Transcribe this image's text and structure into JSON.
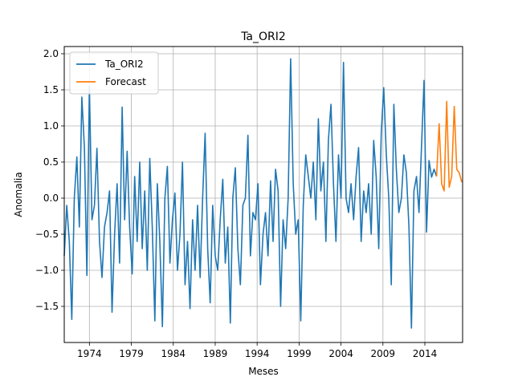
{
  "chart_data": {
    "type": "line",
    "title": "Ta_ORI2",
    "xlabel": "Meses",
    "ylabel": "Anomalia",
    "grid": true,
    "legend_position": "top-left",
    "xlim": [
      1971.0,
      2018.5
    ],
    "ylim": [
      -2.0,
      2.1
    ],
    "x_ticks": [
      1974,
      1979,
      1984,
      1989,
      1994,
      1999,
      2004,
      2009,
      2014
    ],
    "x_tick_labels": [
      "1974",
      "1979",
      "1984",
      "1989",
      "1994",
      "1999",
      "2004",
      "2009",
      "2014"
    ],
    "y_ticks": [
      -1.5,
      -1.0,
      -0.5,
      0.0,
      0.5,
      1.0,
      1.5,
      2.0
    ],
    "y_tick_labels": [
      "−1.5",
      "−1.0",
      "−0.5",
      "0.0",
      "0.5",
      "1.0",
      "1.5",
      "2.0"
    ],
    "series": [
      {
        "name": "Ta_ORI2",
        "color": "#1f77b4",
        "x": [
          1971.0,
          1971.3,
          1971.6,
          1971.9,
          1972.2,
          1972.5,
          1972.8,
          1973.1,
          1973.4,
          1973.7,
          1974.0,
          1974.3,
          1974.6,
          1974.9,
          1975.2,
          1975.5,
          1975.8,
          1976.1,
          1976.4,
          1976.7,
          1977.0,
          1977.3,
          1977.6,
          1977.9,
          1978.2,
          1978.5,
          1978.8,
          1979.1,
          1979.4,
          1979.7,
          1980.0,
          1980.3,
          1980.6,
          1980.9,
          1981.2,
          1981.5,
          1981.8,
          1982.1,
          1982.4,
          1982.7,
          1983.0,
          1983.3,
          1983.6,
          1983.9,
          1984.2,
          1984.5,
          1984.8,
          1985.1,
          1985.4,
          1985.7,
          1986.0,
          1986.3,
          1986.6,
          1986.9,
          1987.2,
          1987.5,
          1987.8,
          1988.1,
          1988.4,
          1988.7,
          1989.0,
          1989.3,
          1989.6,
          1989.9,
          1990.2,
          1990.5,
          1990.8,
          1991.1,
          1991.4,
          1991.7,
          1992.0,
          1992.3,
          1992.6,
          1992.9,
          1993.2,
          1993.5,
          1993.8,
          1994.1,
          1994.4,
          1994.7,
          1995.0,
          1995.3,
          1995.6,
          1995.9,
          1996.2,
          1996.5,
          1996.8,
          1997.1,
          1997.4,
          1997.7,
          1998.0,
          1998.3,
          1998.6,
          1998.9,
          1999.2,
          1999.5,
          1999.8,
          2000.1,
          2000.4,
          2000.7,
          2001.0,
          2001.3,
          2001.6,
          2001.9,
          2002.2,
          2002.5,
          2002.8,
          2003.1,
          2003.4,
          2003.7,
          2004.0,
          2004.3,
          2004.6,
          2004.9,
          2005.2,
          2005.5,
          2005.8,
          2006.1,
          2006.4,
          2006.7,
          2007.0,
          2007.3,
          2007.6,
          2007.9,
          2008.2,
          2008.5,
          2008.8,
          2009.1,
          2009.4,
          2009.7,
          2010.0,
          2010.3,
          2010.6,
          2010.9,
          2011.2,
          2011.5,
          2011.8,
          2012.1,
          2012.4,
          2012.7,
          2013.0,
          2013.3,
          2013.6,
          2013.9,
          2014.2,
          2014.5,
          2014.8,
          2015.1,
          2015.4
        ],
        "values": [
          -0.8,
          -0.1,
          -0.6,
          -1.68,
          0.0,
          0.57,
          -0.4,
          1.4,
          0.7,
          -1.07,
          1.55,
          -0.3,
          -0.1,
          0.69,
          -0.6,
          -1.1,
          -0.4,
          -0.2,
          0.1,
          -1.58,
          -0.5,
          0.2,
          -0.9,
          1.26,
          -0.3,
          0.65,
          -0.4,
          -1.05,
          0.3,
          -0.6,
          0.5,
          -0.7,
          0.1,
          -1.0,
          0.55,
          -0.4,
          -1.7,
          0.2,
          -0.6,
          -1.78,
          0.0,
          0.44,
          -0.9,
          -0.3,
          0.07,
          -1.0,
          -0.5,
          0.5,
          -1.2,
          -0.6,
          -1.53,
          -0.3,
          -1.0,
          -0.1,
          -1.1,
          0.0,
          0.9,
          -0.7,
          -1.45,
          -0.1,
          -0.8,
          -1.0,
          -0.3,
          0.26,
          -0.9,
          -0.4,
          -1.73,
          0.0,
          0.42,
          -0.7,
          -1.2,
          -0.1,
          0.0,
          0.87,
          -0.8,
          -0.2,
          -0.3,
          0.2,
          -1.2,
          -0.5,
          -0.2,
          -0.8,
          0.24,
          -0.6,
          0.4,
          0.1,
          -1.5,
          -0.3,
          -0.7,
          0.0,
          1.93,
          0.2,
          -0.5,
          -0.3,
          -1.7,
          -0.1,
          0.6,
          0.3,
          0.0,
          0.5,
          -0.3,
          1.1,
          0.1,
          0.5,
          -0.6,
          0.8,
          1.3,
          0.2,
          -0.6,
          0.6,
          0.0,
          1.88,
          0.0,
          -0.2,
          0.2,
          -0.3,
          0.3,
          0.7,
          -0.6,
          0.1,
          -0.2,
          0.2,
          -0.5,
          0.8,
          0.3,
          -0.7,
          0.9,
          1.53,
          0.6,
          0.0,
          -1.2,
          1.3,
          0.4,
          -0.2,
          0.0,
          0.6,
          0.35,
          -0.4,
          -1.8,
          0.1,
          0.3,
          -0.2,
          0.7,
          1.63,
          -0.47,
          0.52,
          0.29,
          0.4,
          0.3
        ]
      },
      {
        "name": "Forecast",
        "color": "#ff7f0e",
        "x": [
          2015.4,
          2015.7,
          2016.0,
          2016.3,
          2016.6,
          2016.9,
          2017.2,
          2017.5,
          2017.8,
          2018.1,
          2018.4
        ],
        "values": [
          0.3,
          1.03,
          0.2,
          0.1,
          1.34,
          0.15,
          0.3,
          1.27,
          0.4,
          0.35,
          0.22
        ]
      }
    ]
  }
}
